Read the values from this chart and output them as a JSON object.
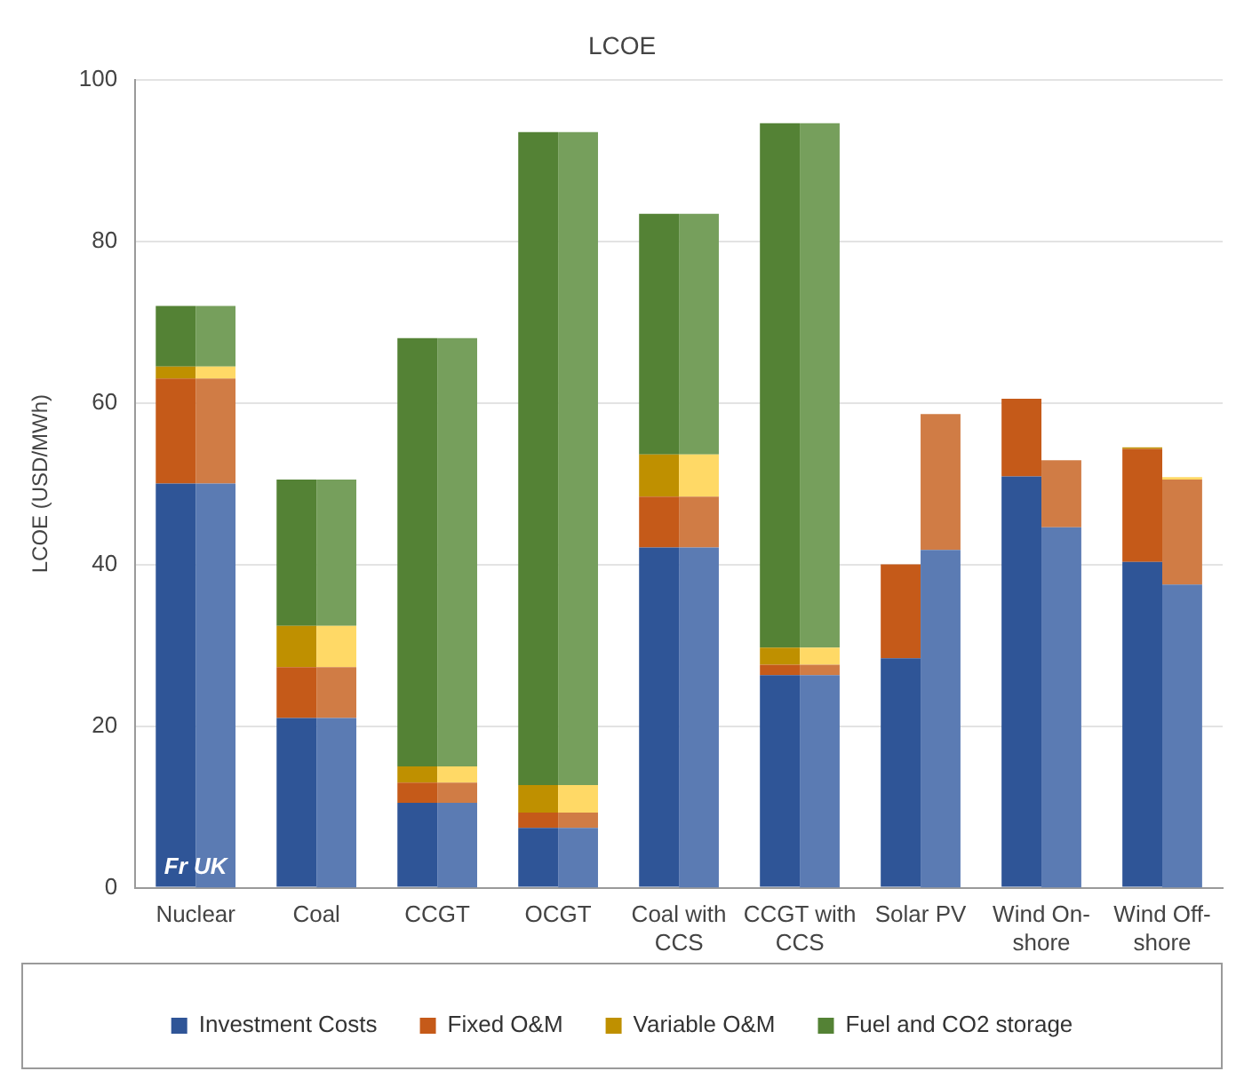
{
  "chart_data": [
    {
      "type": "bar",
      "title": "LCOE",
      "ylabel": "LCOE (USD/MWh)",
      "categories": [
        "Nuclear",
        "Coal",
        "CCGT",
        "OCGT",
        "Coal with CCS",
        "CCGT with CCS",
        "Solar PV",
        "Wind On-shore",
        "Wind Off-shore"
      ],
      "stacked": true,
      "ylim": [
        0,
        100
      ],
      "yticks": [
        0,
        20,
        40,
        60,
        80,
        100
      ],
      "grid": "y",
      "legend": "bottom",
      "annotations": [
        "Fr UK"
      ],
      "series": [
        {
          "name": "Investment Costs",
          "color": "#2f5597",
          "values": [
            50,
            21,
            10.5,
            7.4,
            42.1,
            26.3,
            28.4,
            50.9,
            40.3
          ]
        },
        {
          "name": "Fixed O&M",
          "color": "#c55a19",
          "values": [
            13,
            6.3,
            2.5,
            1.9,
            6.3,
            1.3,
            11.6,
            9.6,
            14
          ]
        },
        {
          "name": "Variable O&M",
          "color": "#bf9000",
          "values": [
            1.5,
            5.1,
            2,
            3.4,
            5.2,
            2.1,
            null,
            null,
            0.2
          ]
        },
        {
          "name": "Fuel and CO2 storage",
          "color": "#548235",
          "values": [
            7.5,
            18.1,
            53,
            80.8,
            29.8,
            64.9,
            null,
            null,
            null
          ]
        }
      ]
    },
    {
      "type": "bar",
      "categories": [
        null,
        null,
        null,
        null,
        null,
        null,
        null,
        null,
        null
      ],
      "stacked": true,
      "ylim": [
        0,
        100
      ],
      "yticks": [
        0,
        20,
        40,
        60,
        80,
        100
      ],
      "tick_labels": false,
      "series": [
        {
          "color": "#5b7bb3",
          "values": [
            50,
            21,
            10.5,
            7.4,
            42.1,
            26.3,
            41.8,
            44.6,
            37.5
          ]
        },
        {
          "color": "#d07c45",
          "values": [
            13,
            6.3,
            2.5,
            1.9,
            6.3,
            1.3,
            16.8,
            8.3,
            13
          ]
        },
        {
          "color": "#ffd966",
          "values": [
            1.5,
            5.1,
            2,
            3.4,
            5.2,
            2.1,
            null,
            null,
            0.3
          ]
        },
        {
          "color": "#769f5c",
          "values": [
            7.5,
            18.1,
            53,
            80.8,
            29.8,
            64.9,
            null,
            null,
            null
          ]
        }
      ]
    }
  ]
}
